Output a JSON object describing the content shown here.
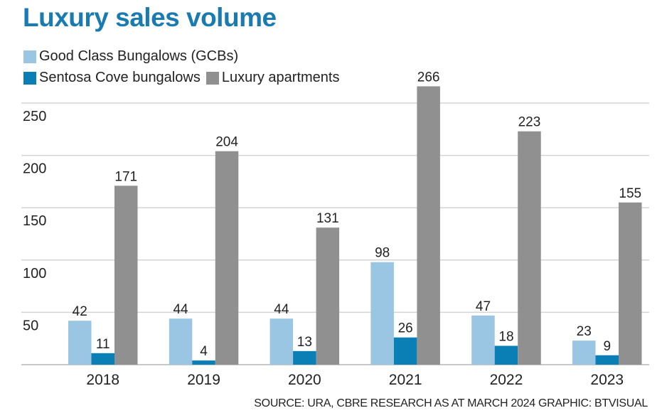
{
  "chart_data": {
    "type": "bar",
    "title": "Luxury sales volume",
    "categories": [
      "2018",
      "2019",
      "2020",
      "2021",
      "2022",
      "2023"
    ],
    "series": [
      {
        "name": "Good Class Bungalows (GCBs)",
        "color": "#9ac6e4",
        "values": [
          42,
          44,
          44,
          98,
          47,
          23
        ]
      },
      {
        "name": "Sentosa Cove bungalows",
        "color": "#0a7fb5",
        "values": [
          11,
          4,
          13,
          26,
          18,
          9
        ]
      },
      {
        "name": "Luxury apartments",
        "color": "#909090",
        "values": [
          171,
          204,
          131,
          266,
          223,
          155
        ]
      }
    ],
    "yticks": [
      50,
      100,
      150,
      200,
      250
    ],
    "ylim": [
      0,
      260
    ],
    "xlabel": "",
    "ylabel": "",
    "grid": true,
    "legend": "top-left"
  },
  "source": "SOURCE: URA, CBRE RESEARCH AS AT MARCH 2024   GRAPHIC: BTVISUAL"
}
